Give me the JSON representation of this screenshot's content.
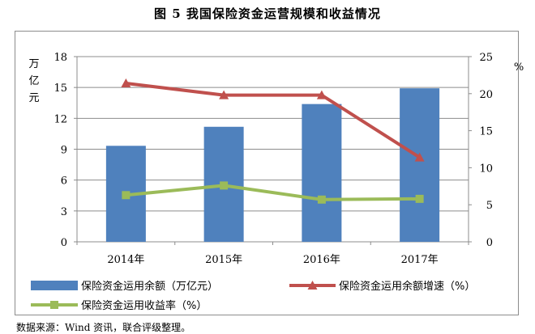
{
  "title": "图 5    我国保险资金运营规模和收益情况",
  "source": "数据来源：Wind 资讯，联合评级整理。",
  "chart_data": {
    "type": "bar",
    "categories": [
      "2014年",
      "2015年",
      "2016年",
      "2017年"
    ],
    "ylabel_left": "万亿元",
    "ylabel_right": "%",
    "ylim_left": [
      0,
      18
    ],
    "yticks_left": [
      0,
      3,
      6,
      9,
      12,
      15,
      18
    ],
    "ylim_right": [
      0,
      25
    ],
    "yticks_right": [
      0,
      5,
      10,
      15,
      20,
      25
    ],
    "grid": true,
    "legend_position": "bottom",
    "series": [
      {
        "name": "保险资金运用余额（万亿元）",
        "type": "bar",
        "axis": "left",
        "color": "#4f81bd",
        "values": [
          9.33,
          11.18,
          13.39,
          14.92
        ]
      },
      {
        "name": "保险资金运用余额增速（%）",
        "type": "line",
        "axis": "right",
        "color": "#c0504d",
        "marker": "triangle",
        "values": [
          21.4,
          19.8,
          19.8,
          11.4
        ]
      },
      {
        "name": "保险资金运用收益率（%）",
        "type": "line",
        "axis": "right",
        "color": "#9bbb59",
        "marker": "square",
        "values": [
          6.3,
          7.6,
          5.7,
          5.8
        ]
      }
    ]
  }
}
